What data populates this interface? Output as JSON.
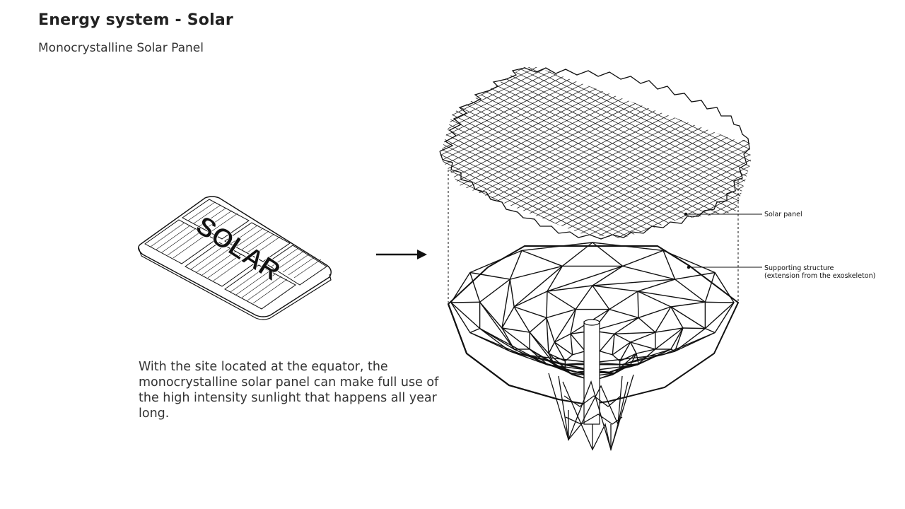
{
  "header": {
    "title": "Energy system - Solar",
    "subtitle": "Monocrystalline Solar Panel"
  },
  "panel_icon": {
    "label": "SOLAR"
  },
  "description": "With the site located at the equator, the monocrystalline solar panel can make full use of the high intensity sunlight that happens all year long.",
  "callouts": {
    "solar_panel": "Solar panel",
    "supporting_structure_line1": "Supporting structure",
    "supporting_structure_line2": "(extension from the exoskeleton)"
  },
  "colors": {
    "ink": "#111111",
    "text": "#333333",
    "pole": "#ffffff"
  }
}
